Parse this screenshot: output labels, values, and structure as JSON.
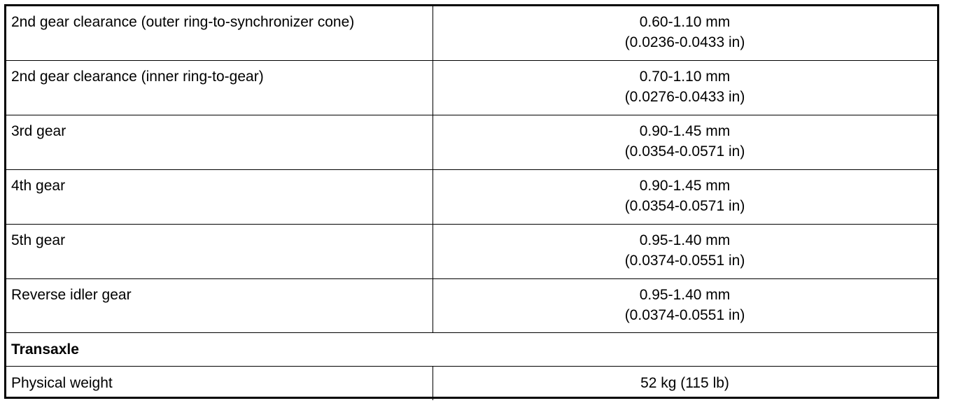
{
  "table": {
    "rows": [
      {
        "label": "2nd gear clearance (outer ring-to-synchronizer cone)",
        "value": [
          "0.60-1.10 mm",
          "(0.0236-0.0433 in)"
        ]
      },
      {
        "label": "2nd gear clearance (inner ring-to-gear)",
        "value": [
          "0.70-1.10 mm",
          "(0.0276-0.0433 in)"
        ]
      },
      {
        "label": "3rd gear",
        "value": [
          "0.90-1.45 mm",
          "(0.0354-0.0571 in)"
        ]
      },
      {
        "label": "4th gear",
        "value": [
          "0.90-1.45 mm",
          "(0.0354-0.0571 in)"
        ]
      },
      {
        "label": "5th gear",
        "value": [
          "0.95-1.40 mm",
          "(0.0374-0.0551 in)"
        ]
      },
      {
        "label": "Reverse idler gear",
        "value": [
          "0.95-1.40 mm",
          "(0.0374-0.0551 in)"
        ]
      }
    ],
    "section": "Transaxle",
    "section_rows": [
      {
        "label": "Physical weight",
        "value": [
          "52 kg (115 lb)"
        ]
      }
    ]
  }
}
